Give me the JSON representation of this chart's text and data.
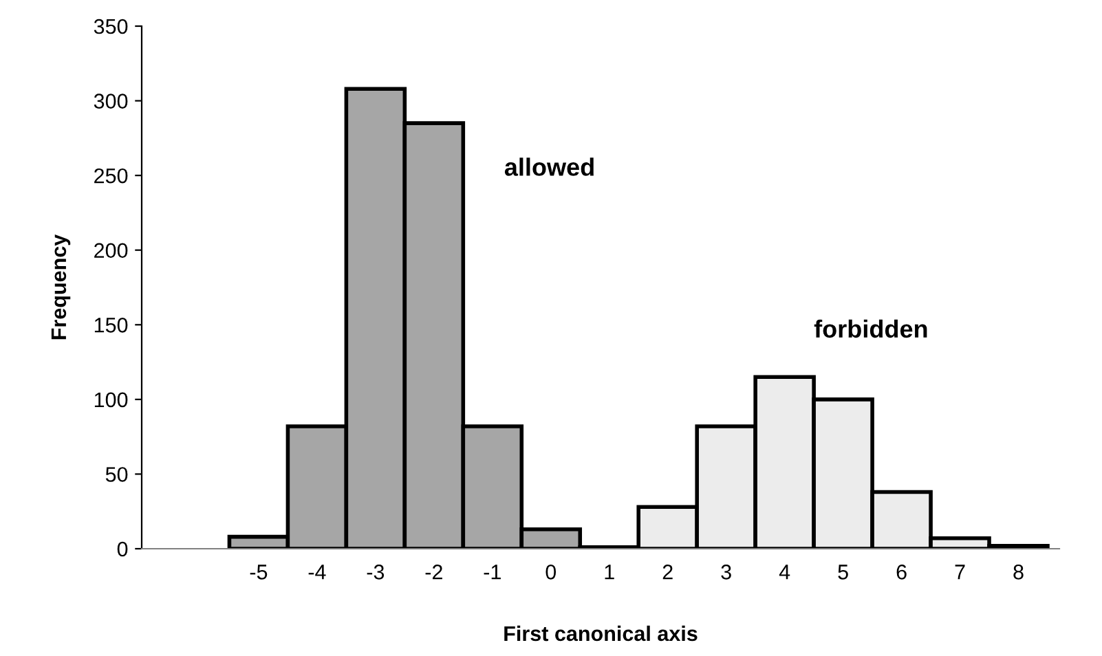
{
  "chart_data": {
    "type": "bar",
    "xlabel": "First canonical axis",
    "ylabel": "Frequency",
    "categories": [
      "-5",
      "-4",
      "-3",
      "-2",
      "-1",
      "0",
      "1",
      "2",
      "3",
      "4",
      "5",
      "6",
      "7",
      "8"
    ],
    "series": [
      {
        "name": "allowed",
        "color": "#a6a6a6",
        "values": [
          8,
          82,
          308,
          285,
          82,
          13,
          1,
          null,
          null,
          null,
          null,
          null,
          null,
          null
        ]
      },
      {
        "name": "forbidden",
        "color": "#ececec",
        "values": [
          null,
          null,
          null,
          null,
          null,
          null,
          null,
          28,
          82,
          115,
          100,
          38,
          7,
          2
        ]
      }
    ],
    "ylim": [
      0,
      350
    ],
    "yticks": [
      0,
      50,
      100,
      150,
      200,
      250,
      300,
      350
    ],
    "grid": false,
    "legend": false
  }
}
